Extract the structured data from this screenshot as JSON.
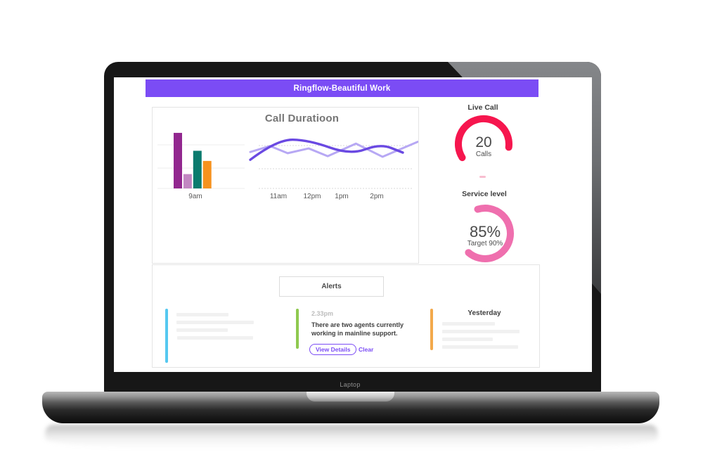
{
  "app": {
    "title": "Ringflow-Beautiful Work"
  },
  "device": {
    "label": "Laptop"
  },
  "colors": {
    "accent": "#7b4cf5",
    "header_bg": "#7b4cf5"
  },
  "chart_data": [
    {
      "type": "bar",
      "title": "Call Duratioon",
      "categories": [
        "9am"
      ],
      "values": [
        93,
        24,
        63,
        46
      ],
      "colors": [
        "#92278f",
        "#c287c2",
        "#0b7b6e",
        "#f6921e"
      ],
      "ylim": [
        0,
        100
      ],
      "grid": "solid"
    },
    {
      "type": "line",
      "x_ticks": [
        "11am",
        "12pm",
        "1pm",
        "2pm"
      ],
      "xlim": [
        10.1,
        15.3
      ],
      "ylim": [
        0,
        100
      ],
      "grid": "dashed",
      "series": [
        {
          "name": "call-duration-primary",
          "color": "#6a49e2",
          "smooth": true,
          "x": [
            10.14,
            10.96,
            11.92,
            13.2,
            14.1,
            14.79
          ],
          "values": [
            48,
            82,
            81,
            56,
            75,
            60
          ]
        },
        {
          "name": "call-duration-secondary",
          "color": "#b7a8f4",
          "smooth": false,
          "x": [
            10.14,
            10.74,
            11.28,
            11.92,
            12.5,
            13.36,
            14.17,
            15.24
          ],
          "values": [
            61,
            71,
            59,
            67,
            54,
            75,
            53,
            78
          ]
        }
      ]
    },
    {
      "type": "gauge",
      "title": "Live Call",
      "value": "20",
      "unit": "Calls",
      "color": "#f6164e"
    },
    {
      "type": "gauge",
      "title": "Service level",
      "value": "85%",
      "caption": "Target 90%",
      "color": "#ef6fae"
    }
  ],
  "alerts": {
    "header": "Alerts",
    "items": [
      {
        "accent": "#55c8f0",
        "skeleton": true
      },
      {
        "accent": "#8fc94f",
        "time": "2.33pm",
        "message_line1": "There are two agents currently",
        "message_line2": "working in mainline support.",
        "actions": {
          "primary": "View Details",
          "secondary": "Clear"
        }
      },
      {
        "accent": "#f3a94b",
        "title": "Yesterday",
        "skeleton": true
      }
    ]
  }
}
